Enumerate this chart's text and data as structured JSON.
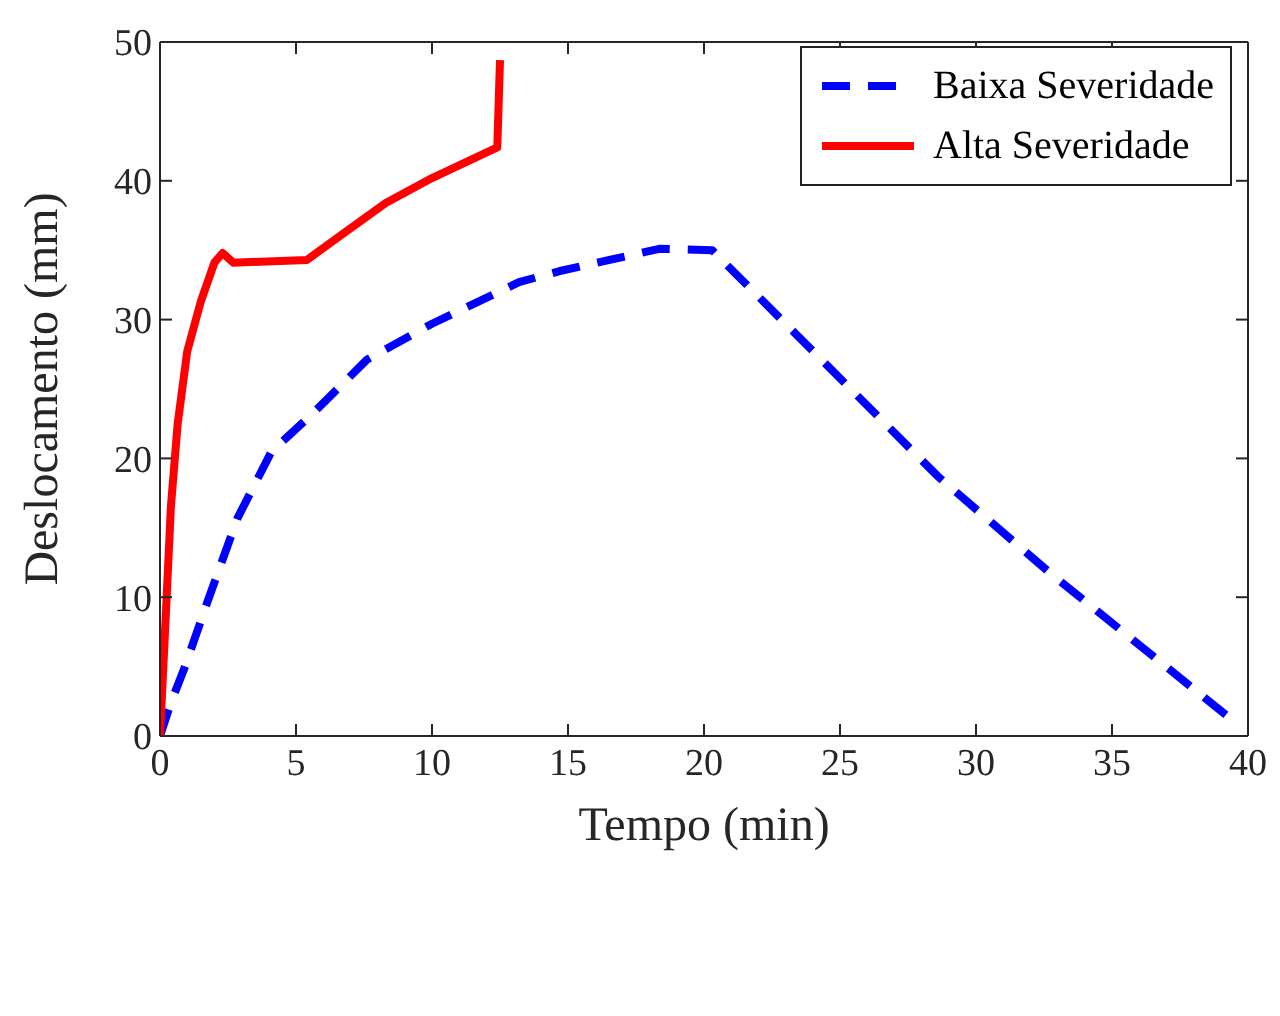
{
  "chart_data": {
    "type": "line",
    "xlabel": "Tempo (min)",
    "ylabel": "Deslocamento (mm)",
    "xlim": [
      0,
      40
    ],
    "xticks": [
      0,
      5,
      10,
      15,
      20,
      25,
      30,
      35,
      40
    ],
    "ylim": [
      0,
      50
    ],
    "yticks": [
      0,
      10,
      20,
      30,
      40,
      50
    ],
    "grid": false,
    "legend": "top right",
    "marker": "none",
    "series": [
      {
        "name": "Baixa Severidade",
        "color": "#0000ff",
        "line_style": "dashed",
        "x": [
          0,
          0.4,
          0.9,
          1.75,
          2.85,
          4.1,
          5.65,
          7.6,
          10.0,
          13.2,
          14.7,
          18.35,
          20.3,
          23.0,
          28.6,
          32.75,
          39.2
        ],
        "values": [
          0,
          2.4,
          4.9,
          9.7,
          15.7,
          20.5,
          23.3,
          27.1,
          29.7,
          32.7,
          33.5,
          35.1,
          35.0,
          29.7,
          18.7,
          11.7,
          1.5
        ]
      },
      {
        "name": "Alta Severidade",
        "color": "#ff0000",
        "line_style": "solid",
        "x": [
          0,
          0.16,
          0.4,
          0.65,
          1.0,
          1.5,
          2.0,
          2.3,
          2.7,
          5.4,
          6.6,
          8.3,
          10.0,
          12.4,
          12.5
        ],
        "values": [
          0,
          6.5,
          16.5,
          22.5,
          27.7,
          31.3,
          34.1,
          34.8,
          34.1,
          34.3,
          36.0,
          38.4,
          40.2,
          42.4,
          48.7
        ]
      }
    ]
  }
}
